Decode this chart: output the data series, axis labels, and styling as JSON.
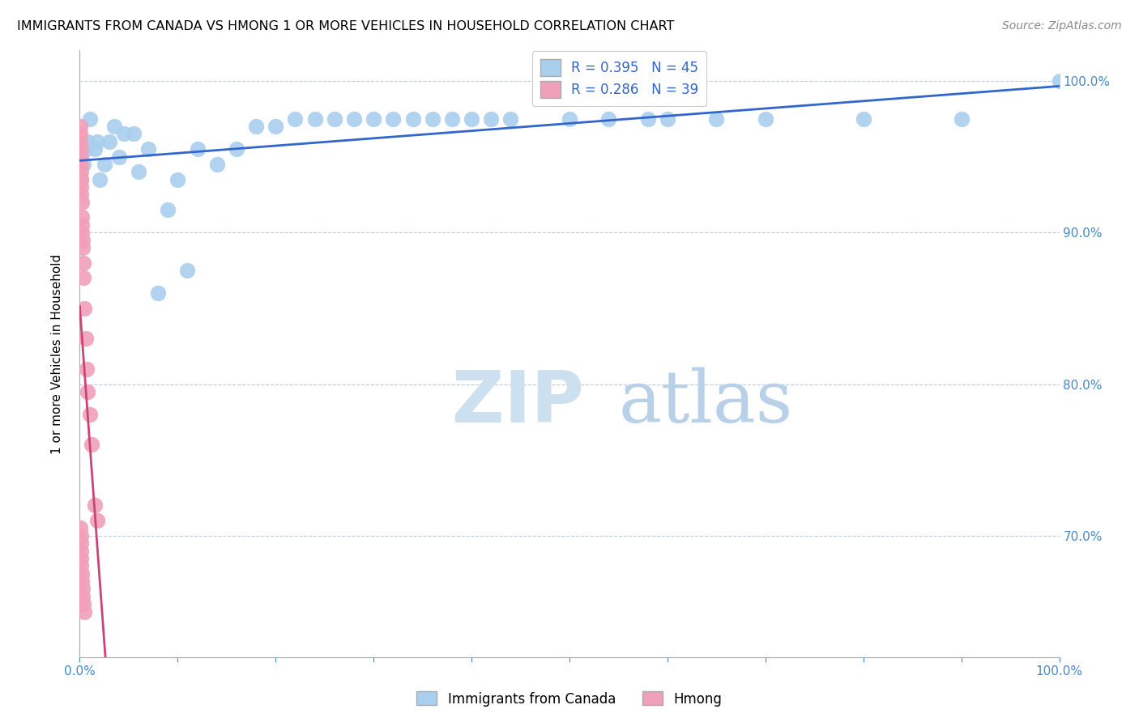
{
  "title": "IMMIGRANTS FROM CANADA VS HMONG 1 OR MORE VEHICLES IN HOUSEHOLD CORRELATION CHART",
  "source": "Source: ZipAtlas.com",
  "ylabel": "1 or more Vehicles in Household",
  "r1": 0.395,
  "n1": 45,
  "r2": 0.286,
  "n2": 39,
  "canada_color": "#aacfee",
  "hmong_color": "#f0a0b8",
  "trendline_color": "#3366cc",
  "hmong_trendline_color": "#cc4477",
  "watermark_zip_color": "#cce0f0",
  "watermark_atlas_color": "#b8d0e8",
  "legend1_label": "Immigrants from Canada",
  "legend2_label": "Hmong",
  "xlim": [
    0,
    100
  ],
  "ylim": [
    62,
    102
  ],
  "canada_x": [
    0.4,
    0.6,
    0.8,
    1.0,
    1.5,
    1.8,
    2.0,
    2.5,
    3.0,
    3.5,
    4.0,
    4.5,
    5.5,
    6.0,
    7.0,
    8.0,
    9.0,
    10.0,
    11.0,
    12.0,
    14.0,
    16.0,
    18.0,
    20.0,
    22.0,
    24.0,
    26.0,
    28.0,
    30.0,
    32.0,
    34.0,
    36.0,
    38.0,
    40.0,
    42.0,
    44.0,
    50.0,
    54.0,
    58.0,
    60.0,
    65.0,
    70.0,
    80.0,
    90.0,
    100.0
  ],
  "canada_y": [
    94.5,
    95.5,
    96.0,
    97.5,
    95.5,
    96.0,
    93.5,
    94.5,
    96.0,
    97.0,
    95.0,
    96.5,
    96.5,
    94.0,
    95.5,
    86.0,
    91.5,
    93.5,
    87.5,
    95.5,
    94.5,
    95.5,
    97.0,
    97.0,
    97.5,
    97.5,
    97.5,
    97.5,
    97.5,
    97.5,
    97.5,
    97.5,
    97.5,
    97.5,
    97.5,
    97.5,
    97.5,
    97.5,
    97.5,
    97.5,
    97.5,
    97.5,
    97.5,
    97.5,
    100.0
  ],
  "hmong_x": [
    0.05,
    0.07,
    0.08,
    0.09,
    0.1,
    0.11,
    0.12,
    0.13,
    0.14,
    0.15,
    0.16,
    0.18,
    0.2,
    0.22,
    0.25,
    0.28,
    0.3,
    0.35,
    0.4,
    0.5,
    0.6,
    0.7,
    0.8,
    1.0,
    1.2,
    1.5,
    1.8,
    0.06,
    0.09,
    0.11,
    0.13,
    0.15,
    0.17,
    0.19,
    0.22,
    0.26,
    0.32,
    0.38,
    0.45
  ],
  "hmong_y": [
    97.0,
    96.5,
    96.0,
    95.5,
    95.0,
    94.5,
    94.0,
    93.5,
    93.0,
    93.5,
    92.5,
    92.0,
    91.0,
    90.5,
    90.0,
    89.5,
    89.0,
    88.0,
    87.0,
    85.0,
    83.0,
    81.0,
    79.5,
    78.0,
    76.0,
    72.0,
    71.0,
    70.5,
    70.0,
    69.5,
    69.0,
    68.5,
    68.0,
    67.5,
    67.0,
    66.5,
    66.0,
    65.5,
    65.0
  ],
  "yticks": [
    70,
    80,
    90,
    100
  ],
  "ytick_labels": [
    "70.0%",
    "80.0%",
    "90.0%",
    "100.0%"
  ]
}
